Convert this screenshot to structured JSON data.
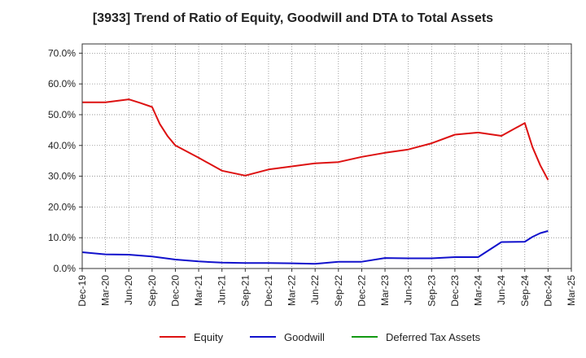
{
  "chart_data": {
    "type": "line",
    "title": "[3933]  Trend of Ratio of Equity, Goodwill and DTA to Total Assets",
    "xlabel": "",
    "ylabel": "",
    "ylim": [
      0,
      73
    ],
    "grid": true,
    "legend_position": "bottom",
    "y_ticks": [
      {
        "value": 0,
        "label": "0.0%"
      },
      {
        "value": 10,
        "label": "10.0%"
      },
      {
        "value": 20,
        "label": "20.0%"
      },
      {
        "value": 30,
        "label": "30.0%"
      },
      {
        "value": 40,
        "label": "40.0%"
      },
      {
        "value": 50,
        "label": "50.0%"
      },
      {
        "value": 60,
        "label": "60.0%"
      },
      {
        "value": 70,
        "label": "70.0%"
      }
    ],
    "x_ticks": [
      "Dec-19",
      "Mar-20",
      "Jun-20",
      "Sep-20",
      "Dec-20",
      "Mar-21",
      "Jun-21",
      "Sep-21",
      "Dec-21",
      "Mar-22",
      "Jun-22",
      "Sep-22",
      "Dec-22",
      "Mar-23",
      "Jun-23",
      "Sep-23",
      "Dec-23",
      "Mar-24",
      "Jun-24",
      "Sep-24",
      "Dec-24",
      "Mar-25"
    ],
    "series": [
      {
        "name": "Equity",
        "color": "#dd1111",
        "points": [
          [
            0,
            54.0
          ],
          [
            1,
            54.0
          ],
          [
            2,
            55.0
          ],
          [
            2.5,
            53.8
          ],
          [
            3,
            52.5
          ],
          [
            3.33,
            47.0
          ],
          [
            3.67,
            43.0
          ],
          [
            4,
            40.0
          ],
          [
            5,
            36.0
          ],
          [
            6,
            31.8
          ],
          [
            7,
            30.2
          ],
          [
            8,
            32.2
          ],
          [
            9,
            33.2
          ],
          [
            10,
            34.2
          ],
          [
            11,
            34.6
          ],
          [
            12,
            36.3
          ],
          [
            13,
            37.6
          ],
          [
            14,
            38.7
          ],
          [
            15,
            40.7
          ],
          [
            16,
            43.5
          ],
          [
            17,
            44.2
          ],
          [
            18,
            43.1
          ],
          [
            19,
            47.3
          ],
          [
            19.33,
            39.5
          ],
          [
            19.67,
            33.5
          ],
          [
            20,
            28.8
          ]
        ]
      },
      {
        "name": "Goodwill",
        "color": "#1111cc",
        "points": [
          [
            0,
            5.3
          ],
          [
            1,
            4.6
          ],
          [
            2,
            4.5
          ],
          [
            3,
            3.9
          ],
          [
            4,
            2.9
          ],
          [
            5,
            2.3
          ],
          [
            6,
            1.9
          ],
          [
            7,
            1.8
          ],
          [
            8,
            1.8
          ],
          [
            9,
            1.7
          ],
          [
            10,
            1.5
          ],
          [
            11,
            2.2
          ],
          [
            12,
            2.2
          ],
          [
            13,
            3.4
          ],
          [
            14,
            3.3
          ],
          [
            15,
            3.3
          ],
          [
            16,
            3.7
          ],
          [
            17,
            3.7
          ],
          [
            18,
            8.6
          ],
          [
            19,
            8.7
          ],
          [
            19.33,
            10.3
          ],
          [
            19.67,
            11.5
          ],
          [
            20,
            12.2
          ]
        ]
      },
      {
        "name": "Deferred Tax Assets",
        "color": "#119911",
        "points": []
      }
    ]
  }
}
